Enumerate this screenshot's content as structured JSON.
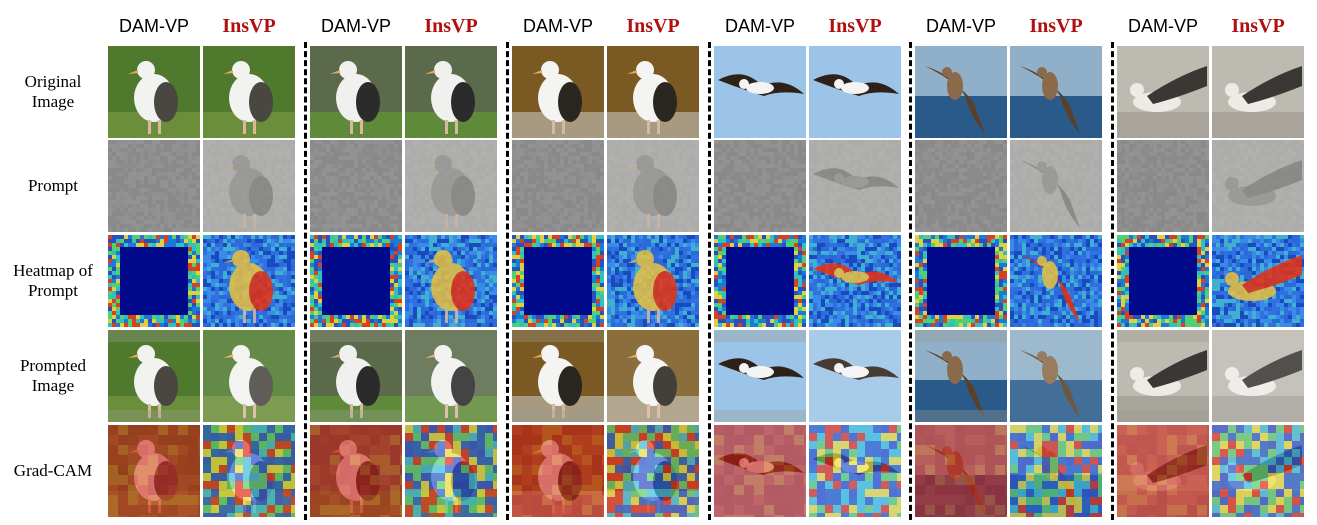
{
  "columns": [
    {
      "group": 1,
      "method": "DAM-VP",
      "kind": "dam"
    },
    {
      "group": 1,
      "method": "InsVP",
      "kind": "ins"
    },
    {
      "group": 2,
      "method": "DAM-VP",
      "kind": "dam"
    },
    {
      "group": 2,
      "method": "InsVP",
      "kind": "ins"
    },
    {
      "group": 3,
      "method": "DAM-VP",
      "kind": "dam"
    },
    {
      "group": 3,
      "method": "InsVP",
      "kind": "ins"
    },
    {
      "group": 4,
      "method": "DAM-VP",
      "kind": "dam"
    },
    {
      "group": 4,
      "method": "InsVP",
      "kind": "ins"
    },
    {
      "group": 5,
      "method": "DAM-VP",
      "kind": "dam"
    },
    {
      "group": 5,
      "method": "InsVP",
      "kind": "ins"
    },
    {
      "group": 6,
      "method": "DAM-VP",
      "kind": "dam"
    },
    {
      "group": 6,
      "method": "InsVP",
      "kind": "ins"
    }
  ],
  "rows": [
    {
      "id": "original",
      "label_lines": [
        "Original",
        "Image"
      ]
    },
    {
      "id": "prompt",
      "label_lines": [
        "Prompt"
      ]
    },
    {
      "id": "heatmap",
      "label_lines": [
        "Heatmap of",
        "Prompt"
      ]
    },
    {
      "id": "prompted",
      "label_lines": [
        "Prompted",
        "Image"
      ]
    },
    {
      "id": "gradcam",
      "label_lines": [
        "Grad-CAM"
      ]
    }
  ],
  "scenes": [
    {
      "name": "standing-albatross-grass",
      "bg": "#4f7a2e",
      "ground": "#6b8e3a",
      "bird": "#f2f2f0",
      "wing": "#4a4640",
      "pose": "standing"
    },
    {
      "name": "standing-albatross-grass-dark",
      "bg": "#5a6a4a",
      "ground": "#5f8a3a",
      "bird": "#f0f0ee",
      "wing": "#2b2b2b",
      "pose": "standing"
    },
    {
      "name": "albatross-on-box",
      "bg": "#7a5a22",
      "ground": "#a89a80",
      "bird": "#f4f4f2",
      "wing": "#2a2620",
      "pose": "perched"
    },
    {
      "name": "flying-albatross-sky",
      "bg": "#9cc4e8",
      "ground": "#9cc4e8",
      "bird": "#f4f4f4",
      "wing": "#2e2218",
      "pose": "flying"
    },
    {
      "name": "flying-brown-bird-sea",
      "bg": "#8fb0c8",
      "ground": "#2a5a8a",
      "bird": "#8a6a4a",
      "wing": "#5a4028",
      "pose": "flying-steep"
    },
    {
      "name": "albatross-on-water",
      "bg": "#bdbab2",
      "ground": "#a8a49c",
      "bird": "#ecebe6",
      "wing": "#3a3834",
      "pose": "swimming"
    }
  ],
  "colors": {
    "prompt_gray": "#8c8c8c",
    "heat_dark": "#000a8a",
    "heat_mid": "#2a6ad8",
    "heat_hot": "#e83010",
    "gradcam_red": "#c8201a",
    "gradcam_blue": "#2a60d0"
  }
}
